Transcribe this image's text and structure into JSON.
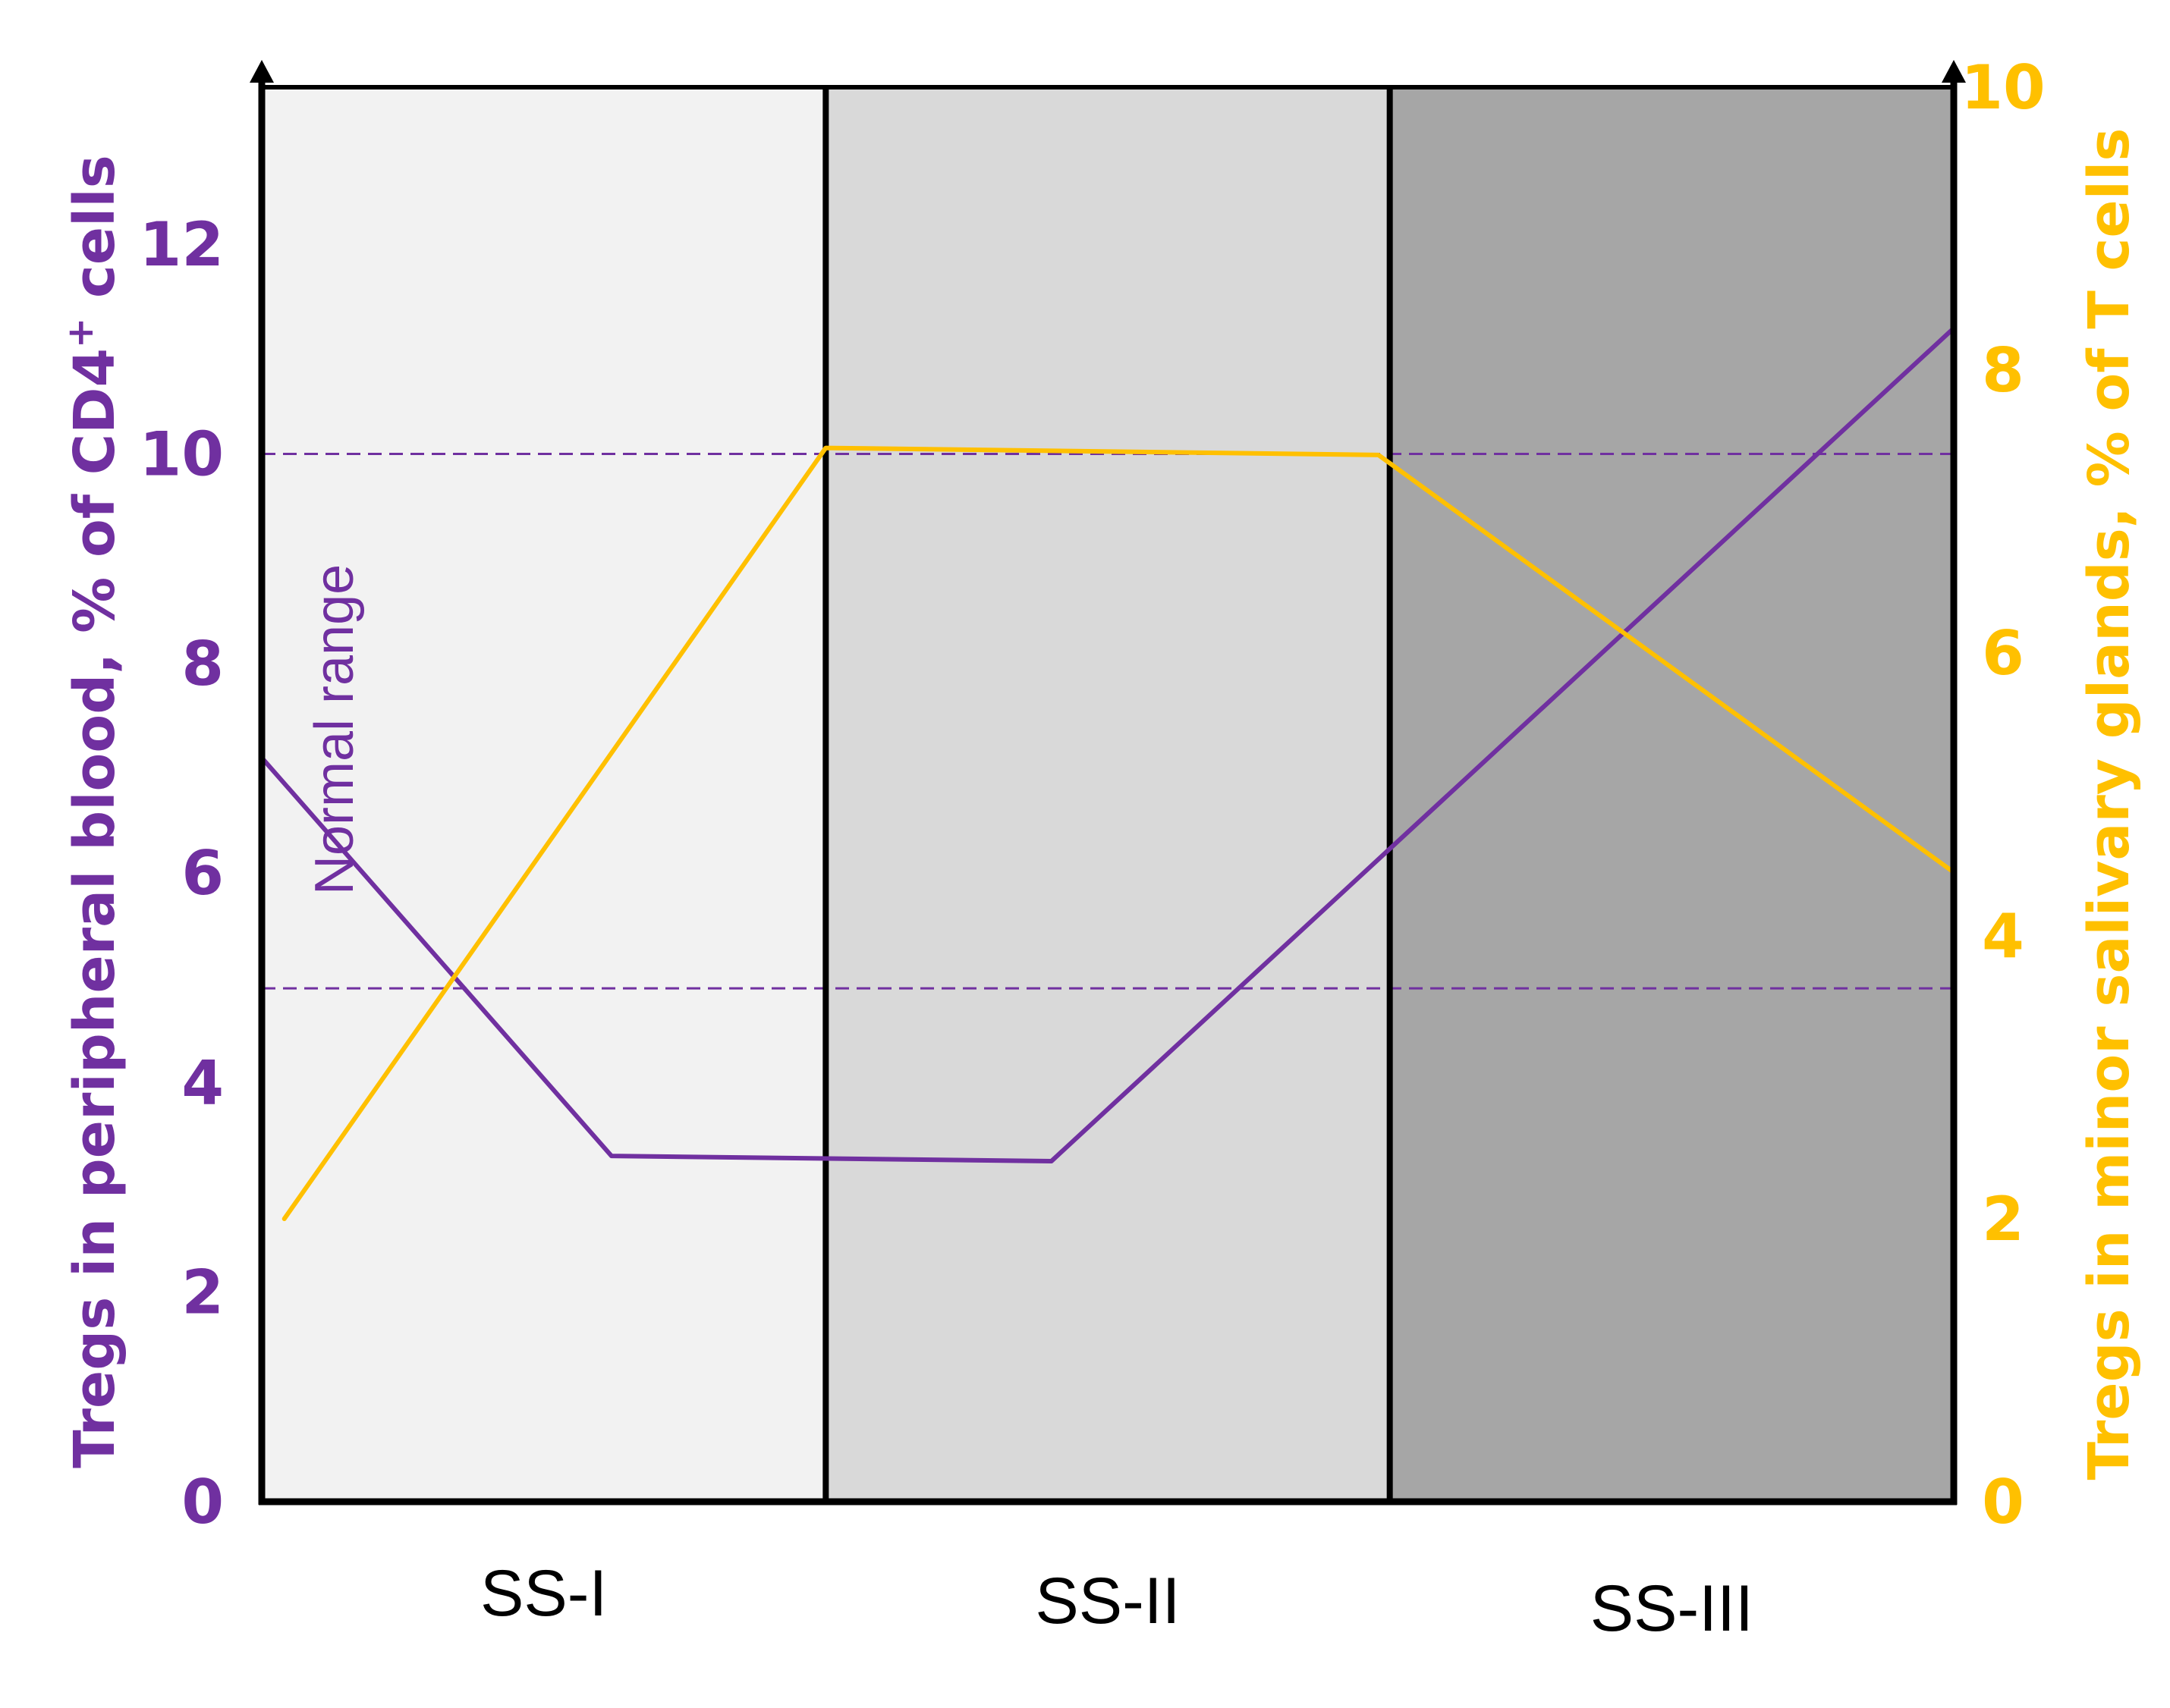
{
  "chart_data": {
    "type": "line",
    "categories": [
      "SS-I",
      "SS-II",
      "SS-III"
    ],
    "y_left": {
      "label_main": "Tregs in peripheral blood, % of CD4",
      "label_sup": "+",
      "label_end": " cells",
      "ticks": [
        "0",
        "2",
        "4",
        "6",
        "8",
        "10",
        "12"
      ],
      "range": [
        0,
        13.5
      ],
      "color": "#7030A0"
    },
    "y_right": {
      "label": "Tregs in minor salivary glands, % of T cells",
      "ticks": [
        "0",
        "2",
        "4",
        "6",
        "8",
        "10"
      ],
      "range": [
        0,
        10
      ],
      "color": "#FFC000"
    },
    "normal_range": {
      "label": "Normal  range",
      "low": 4.9,
      "high": 10,
      "color": "#7030A0"
    },
    "series": [
      {
        "axis": "left",
        "color": "#7030A0",
        "x": [
          0.0,
          0.62,
          1.4,
          3.0
        ],
        "y": [
          7.1,
          3.3,
          3.25,
          11.2
        ]
      },
      {
        "axis": "right",
        "color": "#FFC000",
        "x": [
          0.04,
          1.0,
          1.98,
          3.0
        ],
        "y": [
          2.0,
          7.45,
          7.4,
          4.45
        ]
      }
    ],
    "bands": [
      {
        "category": "SS-I",
        "color": "#F2F2F2"
      },
      {
        "category": "SS-II",
        "color": "#D9D9D9"
      },
      {
        "category": "SS-III",
        "color": "#A6A6A6"
      }
    ]
  }
}
